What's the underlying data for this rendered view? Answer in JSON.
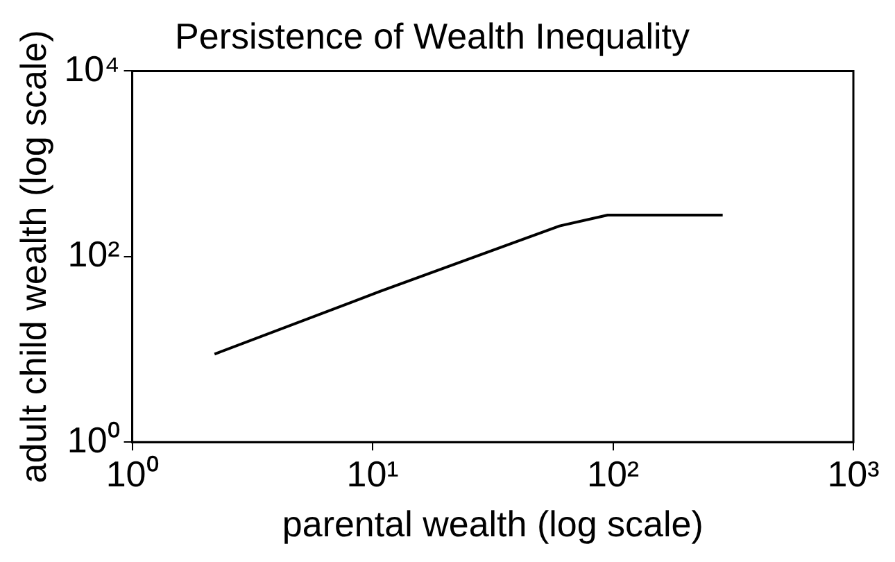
{
  "chart_data": {
    "type": "line",
    "title": "Persistence of Wealth Inequality",
    "xlabel": "parental wealth (log scale)",
    "ylabel": "adult child wealth (log scale)",
    "series": [
      {
        "color": "#000000",
        "x": [
          2.2,
          10.7,
          60,
          95,
          286
        ],
        "values": [
          8.9,
          42,
          214,
          280,
          280
        ]
      }
    ],
    "log": "xy",
    "xlim": [
      1,
      1000
    ],
    "ylim": [
      1,
      10000
    ],
    "xticks": [
      {
        "value": 1,
        "label": "10⁰"
      },
      {
        "value": 10,
        "label": "10¹"
      },
      {
        "value": 100,
        "label": "10²"
      },
      {
        "value": 1000,
        "label": "10³"
      }
    ],
    "yticks": [
      {
        "value": 1,
        "label": "10⁰"
      },
      {
        "value": 100,
        "label": "10²"
      },
      {
        "value": 10000,
        "label": "10⁴"
      }
    ],
    "grid": false,
    "legend": false,
    "marker": "none",
    "line_style": "solid"
  }
}
